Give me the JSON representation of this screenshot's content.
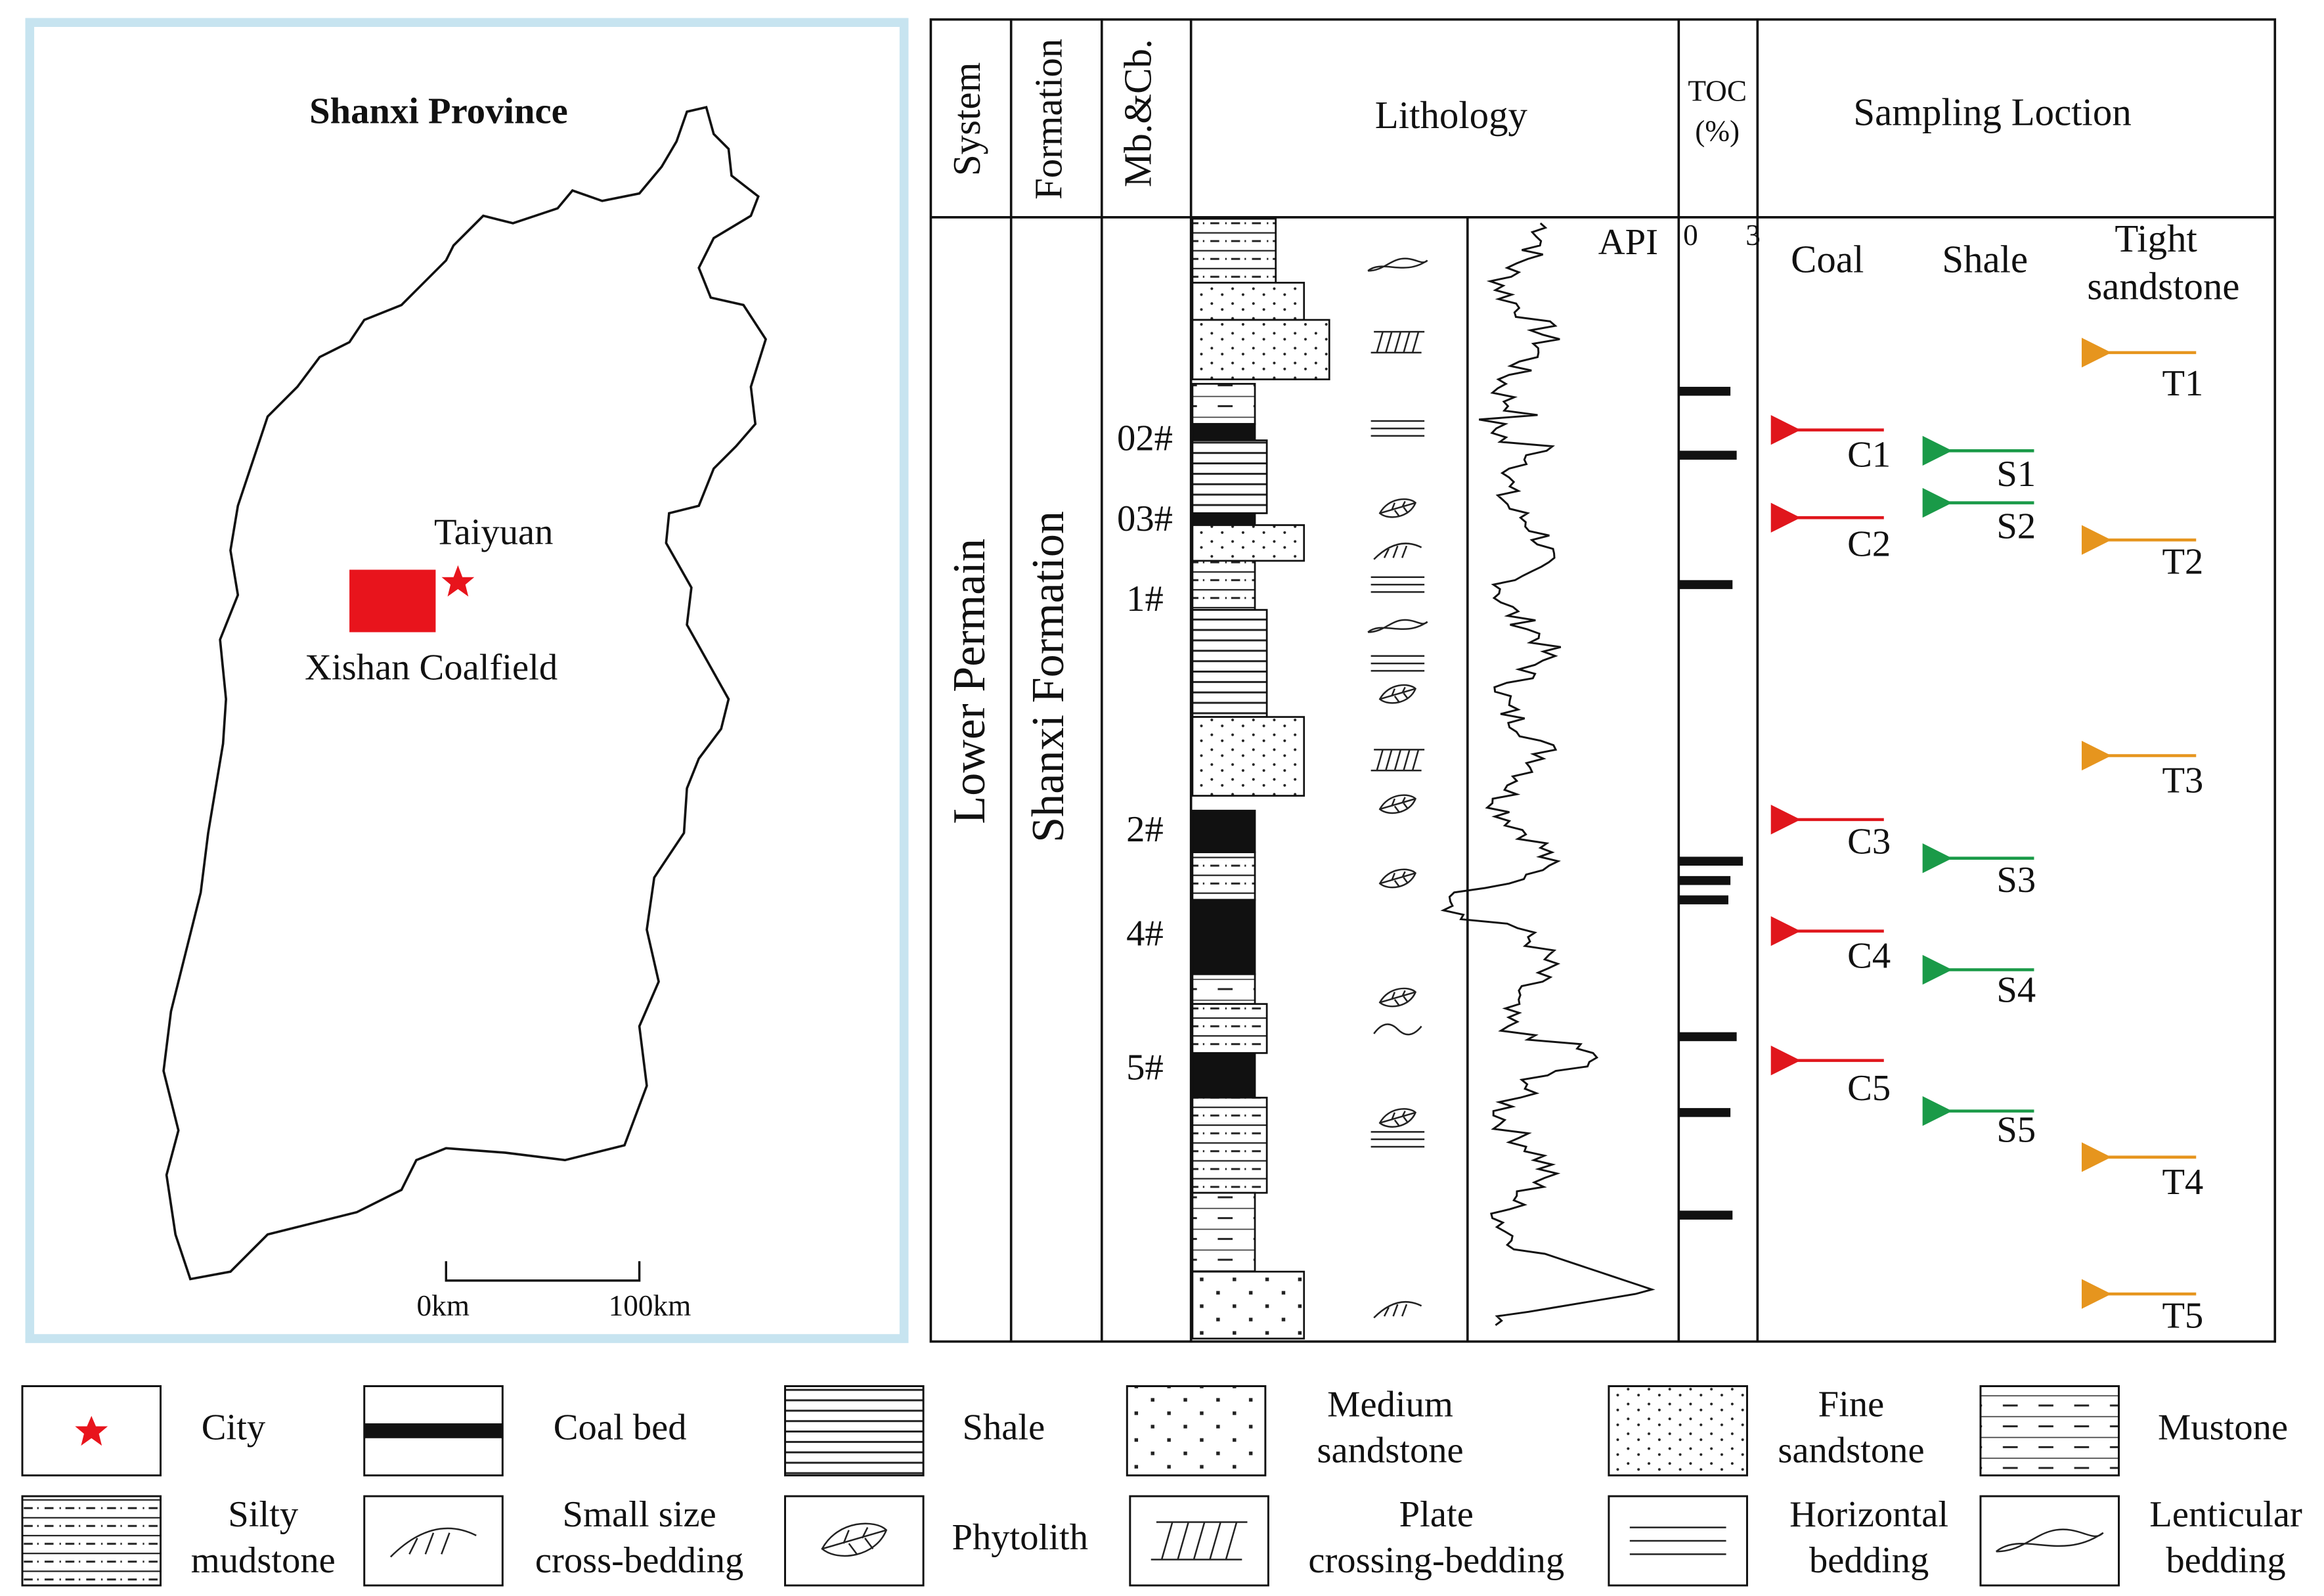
{
  "map": {
    "title": "Shanxi Province",
    "city": "Taiyuan",
    "coalfield": "Xishan Coalfield",
    "scale": [
      "0km",
      "100km"
    ]
  },
  "column": {
    "headers": {
      "system": "System",
      "formation": "Formation",
      "member": "Mb.&Cb.",
      "lithology": "Lithology",
      "toc": [
        "TOC",
        "(%)"
      ],
      "sampling": "Sampling Loction"
    },
    "system": "Lower Permain",
    "formation": "Shanxi Formation",
    "members": [
      "02#",
      "03#",
      "1#",
      "2#",
      "4#",
      "5#"
    ],
    "api": "API",
    "toc_ticks": [
      0,
      3
    ],
    "toc_values": [
      2.2,
      2.5,
      2.3,
      2.8,
      2.2,
      2.1,
      2.5,
      2.2,
      2.3
    ],
    "sampling": {
      "coal_header": "Coal",
      "shale_header": "Shale",
      "tight_header": [
        "Tight",
        "sandstone"
      ],
      "coal": [
        "C1",
        "C2",
        "C3",
        "C4",
        "C5"
      ],
      "shale": [
        "S1",
        "S2",
        "S3",
        "S4",
        "S5"
      ],
      "tight": [
        "T1",
        "T2",
        "T3",
        "T4",
        "T5"
      ]
    }
  },
  "legend": [
    {
      "lines": [
        "City"
      ]
    },
    {
      "lines": [
        "Coal bed"
      ]
    },
    {
      "lines": [
        "Shale"
      ]
    },
    {
      "lines": [
        "Medium",
        "sandstone"
      ]
    },
    {
      "lines": [
        "Fine",
        "sandstone"
      ]
    },
    {
      "lines": [
        "Mustone"
      ]
    },
    {
      "lines": [
        "Silty",
        "mudstone"
      ]
    },
    {
      "lines": [
        "Small size",
        "cross-bedding"
      ]
    },
    {
      "lines": [
        "Phytolith"
      ]
    },
    {
      "lines": [
        "Plate",
        "crossing-bedding"
      ]
    },
    {
      "lines": [
        "Horizontal",
        "bedding"
      ]
    },
    {
      "lines": [
        "Lenticular",
        "bedding"
      ]
    }
  ]
}
